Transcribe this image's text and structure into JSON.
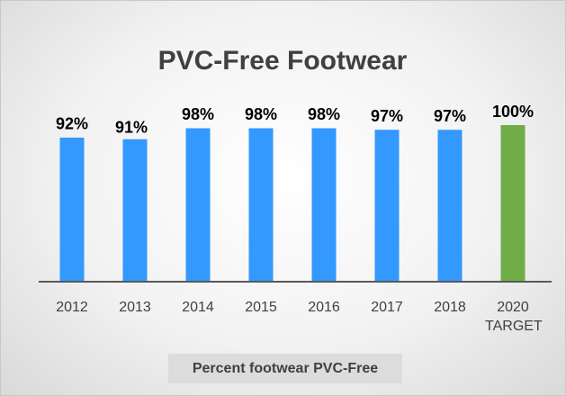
{
  "chart_data": {
    "type": "bar",
    "title": "PVC-Free Footwear",
    "categories": [
      "2012",
      "2013",
      "2014",
      "2015",
      "2016",
      "2017",
      "2018",
      "2020 TARGET"
    ],
    "values": [
      92,
      91,
      98,
      98,
      98,
      97,
      97,
      100
    ],
    "value_labels": [
      "92%",
      "91%",
      "98%",
      "98%",
      "98%",
      "97%",
      "97%",
      "100%"
    ],
    "colors": [
      "#3399ff",
      "#3399ff",
      "#3399ff",
      "#3399ff",
      "#3399ff",
      "#3399ff",
      "#3399ff",
      "#70ad47"
    ],
    "x_label": "Percent footwear PVC-Free"
  }
}
